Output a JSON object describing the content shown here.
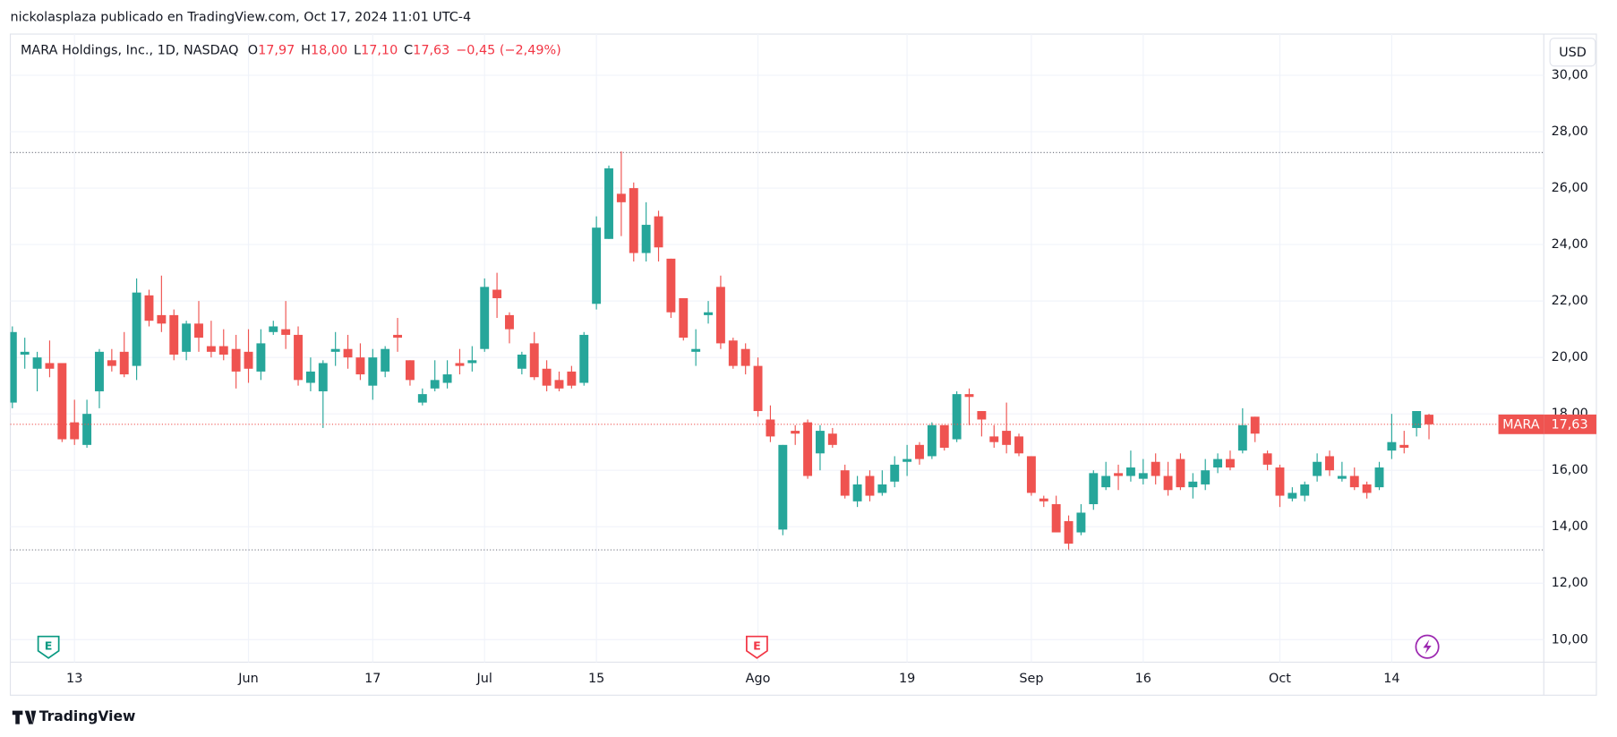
{
  "chart_data": {
    "type": "candlestick",
    "attribution": "nickolasplaza publicado en TradingView.com, Oct 17, 2024 11:01 UTC-4",
    "title": "MARA Holdings, Inc., 1D, NASDAQ",
    "ohlc_labels": [
      {
        "key": "O",
        "value": "17,97"
      },
      {
        "key": "H",
        "value": "18,00"
      },
      {
        "key": "L",
        "value": "17,10"
      },
      {
        "key": "C",
        "value": "17,63"
      }
    ],
    "change_label": "−0,45 (−2,49%)",
    "currency": "USD",
    "brand": "TradingView",
    "events": [
      "E",
      "E"
    ],
    "categories": [
      null,
      null,
      null,
      null,
      null,
      "13",
      null,
      null,
      null,
      null,
      null,
      null,
      null,
      null,
      null,
      null,
      null,
      null,
      null,
      "Jun",
      null,
      null,
      null,
      null,
      null,
      null,
      null,
      null,
      null,
      "17",
      null,
      null,
      null,
      null,
      null,
      null,
      null,
      null,
      "Jul",
      null,
      null,
      null,
      null,
      null,
      null,
      null,
      null,
      "15",
      null,
      null,
      null,
      null,
      null,
      null,
      null,
      null,
      null,
      null,
      null,
      null,
      "Ago",
      null,
      null,
      null,
      null,
      null,
      null,
      null,
      null,
      null,
      null,
      null,
      "19",
      null,
      null,
      null,
      null,
      null,
      null,
      null,
      null,
      null,
      "Sep",
      null,
      null,
      null,
      null,
      null,
      null,
      null,
      null,
      "16",
      null,
      null,
      null,
      null,
      null,
      null,
      null,
      null,
      null,
      null,
      "Oct",
      null,
      null,
      null,
      null,
      null,
      null,
      null,
      null,
      "14",
      null,
      null,
      null
    ],
    "series": [
      {
        "name": "MARA",
        "last_label": "17,63",
        "up_color": "#26a69a",
        "down_color": "#ef5350",
        "open": [
          18.4,
          20.1,
          19.6,
          19.8,
          19.8,
          17.7,
          16.9,
          18.8,
          19.9,
          20.2,
          19.7,
          22.2,
          21.5,
          21.5,
          20.2,
          21.2,
          20.4,
          20.4,
          20.3,
          20.2,
          19.5,
          20.9,
          21.0,
          20.8,
          19.1,
          18.8,
          20.2,
          20.3,
          20.0,
          19.0,
          19.5,
          20.8,
          19.9,
          18.4,
          18.9,
          19.1,
          19.8,
          19.8,
          20.3,
          22.4,
          21.5,
          19.6,
          20.5,
          19.6,
          19.2,
          19.5,
          19.1,
          21.9,
          24.2,
          25.8,
          26.0,
          23.7,
          25.0,
          23.5,
          22.1,
          20.2,
          21.5,
          22.5,
          20.6,
          20.3,
          19.7,
          17.8,
          13.9,
          17.4,
          17.7,
          16.6,
          17.3,
          16.0,
          14.9,
          15.8,
          15.2,
          15.6,
          16.3,
          16.9,
          16.5,
          17.6,
          17.1,
          18.7,
          18.1,
          17.2,
          17.4,
          17.2,
          16.5,
          15.0,
          14.8,
          14.2,
          13.8,
          14.8,
          15.4,
          15.9,
          15.8,
          15.7,
          16.3,
          15.8,
          16.4,
          15.4,
          15.5,
          16.1,
          16.4,
          16.7,
          17.9,
          16.6,
          16.1,
          15.0,
          15.1,
          15.8,
          16.5,
          15.7,
          15.8,
          15.5,
          15.4,
          16.7,
          16.9,
          17.5,
          17.97
        ],
        "high": [
          21.1,
          20.7,
          20.2,
          20.6,
          19.8,
          18.5,
          18.5,
          20.3,
          20.3,
          20.9,
          22.8,
          22.4,
          22.9,
          21.7,
          21.3,
          22.0,
          21.3,
          21.0,
          20.8,
          21.0,
          21.0,
          21.3,
          22.0,
          21.1,
          20.0,
          19.9,
          20.9,
          20.8,
          20.5,
          20.3,
          20.4,
          21.4,
          19.9,
          18.9,
          19.9,
          19.9,
          20.3,
          20.4,
          22.8,
          23.0,
          21.6,
          20.2,
          20.9,
          19.9,
          19.5,
          19.7,
          20.9,
          25.0,
          26.8,
          27.3,
          26.2,
          25.5,
          25.2,
          23.5,
          22.1,
          21.0,
          22.0,
          22.9,
          20.7,
          20.5,
          20.0,
          18.3,
          16.9,
          17.6,
          17.8,
          17.6,
          17.5,
          16.2,
          15.8,
          16.0,
          16.0,
          16.5,
          16.9,
          17.0,
          17.7,
          17.6,
          18.8,
          18.9,
          18.1,
          17.6,
          18.4,
          17.3,
          16.5,
          15.1,
          15.1,
          14.4,
          14.8,
          16.0,
          16.3,
          16.2,
          16.7,
          16.4,
          16.6,
          16.3,
          16.6,
          15.9,
          16.4,
          16.6,
          16.7,
          18.2,
          17.9,
          16.7,
          16.2,
          15.4,
          15.6,
          16.6,
          16.7,
          16.3,
          16.1,
          15.6,
          16.3,
          18.0,
          17.4,
          18.1,
          18.0
        ],
        "low": [
          18.2,
          19.6,
          18.8,
          19.3,
          17.0,
          16.9,
          16.8,
          18.2,
          19.5,
          19.3,
          19.2,
          21.1,
          20.9,
          19.9,
          19.9,
          20.2,
          20.0,
          19.9,
          18.9,
          19.1,
          19.2,
          20.8,
          20.3,
          19.0,
          18.8,
          17.5,
          19.7,
          19.6,
          19.2,
          18.5,
          19.3,
          20.2,
          19.0,
          18.3,
          18.8,
          18.9,
          19.4,
          19.5,
          20.2,
          21.4,
          20.5,
          19.4,
          19.2,
          18.8,
          18.8,
          18.9,
          19.0,
          21.7,
          24.2,
          24.3,
          23.4,
          23.4,
          23.4,
          21.4,
          20.6,
          19.7,
          21.2,
          20.3,
          19.6,
          19.4,
          17.9,
          17.0,
          13.7,
          16.9,
          15.7,
          16.0,
          16.8,
          15.0,
          14.7,
          14.9,
          15.1,
          15.4,
          15.8,
          16.2,
          16.4,
          16.7,
          17.0,
          17.6,
          17.2,
          16.8,
          16.6,
          16.5,
          15.1,
          14.7,
          13.8,
          13.2,
          13.7,
          14.6,
          15.3,
          15.3,
          15.6,
          15.5,
          15.5,
          15.1,
          15.3,
          15.0,
          15.3,
          15.9,
          16.0,
          16.6,
          17.0,
          16.0,
          14.7,
          14.9,
          14.9,
          15.6,
          15.8,
          15.6,
          15.3,
          15.0,
          15.3,
          16.4,
          16.6,
          17.2,
          17.1
        ],
        "close": [
          20.9,
          20.2,
          20.0,
          19.6,
          17.1,
          17.1,
          18.0,
          20.2,
          19.7,
          19.4,
          22.3,
          21.3,
          21.2,
          20.1,
          21.2,
          20.7,
          20.2,
          20.1,
          19.5,
          19.6,
          20.5,
          21.1,
          20.8,
          19.2,
          19.5,
          19.8,
          20.3,
          20.0,
          19.4,
          20.0,
          20.3,
          20.7,
          19.2,
          18.7,
          19.2,
          19.4,
          19.7,
          19.9,
          22.5,
          22.1,
          21.0,
          20.1,
          19.3,
          19.0,
          18.9,
          19.0,
          20.8,
          24.6,
          26.7,
          25.5,
          23.7,
          24.7,
          23.9,
          21.6,
          20.7,
          20.3,
          21.6,
          20.5,
          19.7,
          19.7,
          18.1,
          17.2,
          16.9,
          17.3,
          15.8,
          17.4,
          16.9,
          15.1,
          15.5,
          15.1,
          15.5,
          16.2,
          16.4,
          16.4,
          17.6,
          16.8,
          18.7,
          18.6,
          17.8,
          17.0,
          16.9,
          16.6,
          15.2,
          14.9,
          13.8,
          13.4,
          14.5,
          15.9,
          15.8,
          15.8,
          16.1,
          15.9,
          15.8,
          15.3,
          15.4,
          15.6,
          16.0,
          16.4,
          16.1,
          17.6,
          17.3,
          16.2,
          15.1,
          15.2,
          15.5,
          16.3,
          16.0,
          15.8,
          15.4,
          15.2,
          16.1,
          17.0,
          16.8,
          18.1,
          17.63
        ]
      }
    ],
    "hlines": [
      27.26,
      13.18
    ],
    "hline_color": "#787b86",
    "ylim": [
      9.2,
      31.46
    ],
    "yticks": [
      {
        "value": 10,
        "label": "10,00"
      },
      {
        "value": 12,
        "label": "12,00"
      },
      {
        "value": 14,
        "label": "14,00"
      },
      {
        "value": 16,
        "label": "16,00"
      },
      {
        "value": 18,
        "label": "18,00"
      },
      {
        "value": 20,
        "label": "20,00"
      },
      {
        "value": 22,
        "label": "22,00"
      },
      {
        "value": 24,
        "label": "24,00"
      },
      {
        "value": 26,
        "label": "26,00"
      },
      {
        "value": 28,
        "label": "28,00"
      },
      {
        "value": 30,
        "label": "30,00"
      }
    ],
    "grid": true
  }
}
